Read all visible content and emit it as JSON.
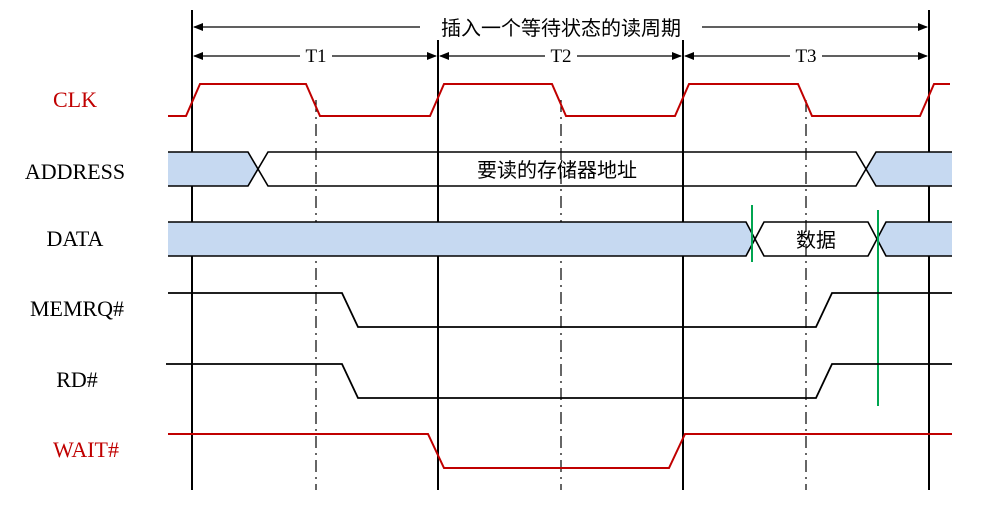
{
  "diagram": {
    "title": "插入一个等待状态的读周期",
    "periods": [
      "T1",
      "T2",
      "T3"
    ],
    "signals": [
      {
        "name": "CLK",
        "color": "#c00000"
      },
      {
        "name": "ADDRESS",
        "color": "#000000"
      },
      {
        "name": "DATA",
        "color": "#000000"
      },
      {
        "name": "MEMRQ#",
        "color": "#000000"
      },
      {
        "name": "RD#",
        "color": "#000000"
      },
      {
        "name": "WAIT#",
        "color": "#c00000"
      }
    ],
    "address_text": "要读的存储器地址",
    "data_text": "数据",
    "colors": {
      "clock": "#c00000",
      "wait": "#c00000",
      "bus_fill": "#c6d9f1",
      "marker": "#00a550",
      "line": "#000000"
    }
  }
}
